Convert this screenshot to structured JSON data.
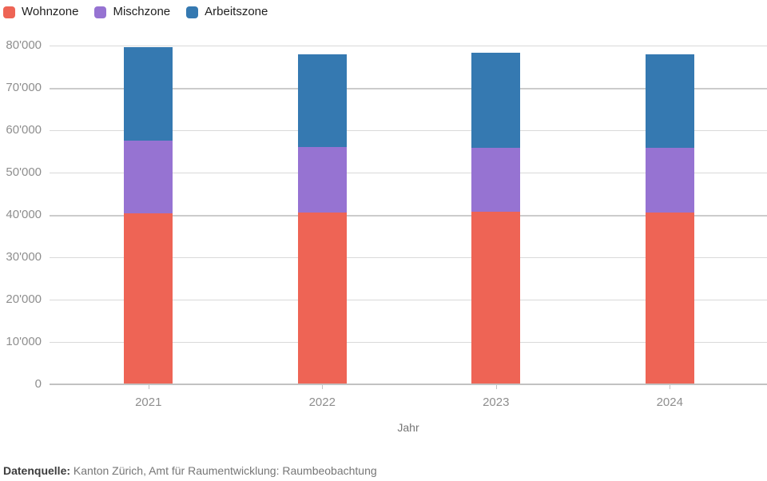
{
  "legend": {
    "position": "top-left",
    "items": [
      {
        "label": "Wohnzone",
        "color": "#ee6455"
      },
      {
        "label": "Mischzone",
        "color": "#9673d2"
      },
      {
        "label": "Arbeitszone",
        "color": "#3579b1"
      }
    ]
  },
  "chart_data": {
    "type": "bar",
    "stacked": true,
    "title": "",
    "categories": [
      "2021",
      "2022",
      "2023",
      "2024"
    ],
    "series": [
      {
        "name": "Wohnzone",
        "color": "#ee6455",
        "values": [
          40200,
          40400,
          40600,
          40400
        ]
      },
      {
        "name": "Mischzone",
        "color": "#9673d2",
        "values": [
          17200,
          15400,
          15100,
          15200
        ]
      },
      {
        "name": "Arbeitszone",
        "color": "#3579b1",
        "values": [
          22000,
          21900,
          22400,
          22100
        ]
      }
    ],
    "totals": [
      79400,
      77700,
      78100,
      77700
    ],
    "xlabel": "Jahr",
    "ylabel": "",
    "ylim": [
      0,
      80000
    ],
    "ytick_labels": [
      "0",
      "10'000",
      "20'000",
      "30'000",
      "40'000",
      "50'000",
      "60'000",
      "70'000",
      "80'000"
    ],
    "grid": true,
    "legend_position": "top-left",
    "colors": {
      "grid": "#d9d9d9",
      "grid_major": "#cccccc",
      "axis": "#c2c2c2",
      "tick_label": "#8e8e8e"
    }
  },
  "footer": {
    "label": "Datenquelle:",
    "text": "Kanton Zürich, Amt für Raumentwicklung: Raumbeobachtung"
  }
}
